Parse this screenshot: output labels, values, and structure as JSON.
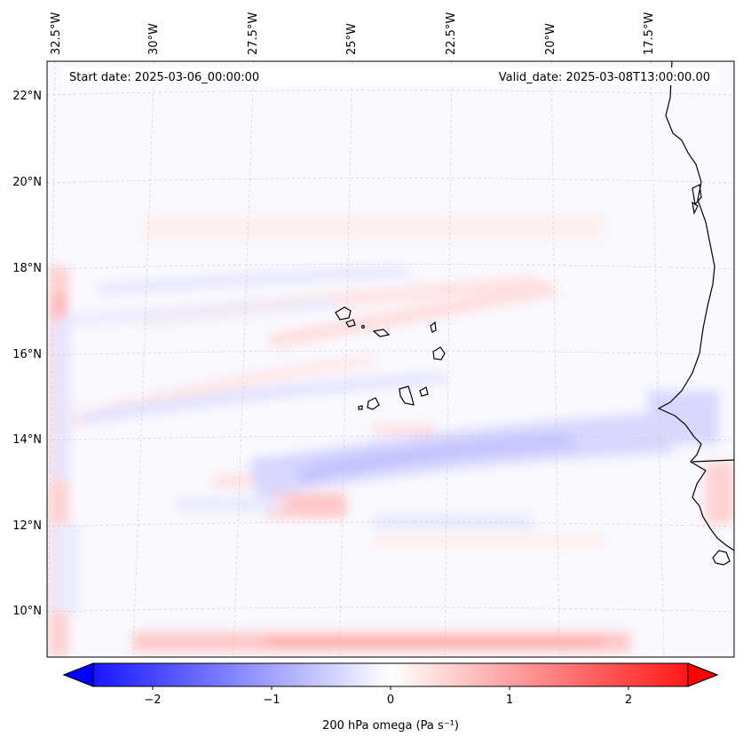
{
  "map": {
    "start_date_label": "Start date: 2025-03-06_00:00:00",
    "valid_date_label": "Valid_date: 2025-03-08T13:00:00.00",
    "lon_labels": [
      "32.5°W",
      "30°W",
      "27.5°W",
      "25°W",
      "22.5°W",
      "20°W",
      "17.5°W"
    ],
    "lat_labels": [
      "22°N",
      "20°N",
      "18°N",
      "16°N",
      "14°N",
      "12°N",
      "10°N"
    ],
    "variable": "200 hPa omega",
    "units": "Pa s⁻¹"
  },
  "colorbar": {
    "title": "200 hPa omega (Pa s⁻¹)",
    "tick_labels": [
      "−2",
      "−1",
      "0",
      "1",
      "2"
    ],
    "min": -2.6,
    "max": 2.6,
    "low_color": "#0000ff",
    "mid_color": "#ffffff",
    "high_color": "#ff0000"
  },
  "colors": {
    "coastline": "#000000",
    "gridline": "#c8c8c8",
    "background_field": "#f8f8ff"
  }
}
